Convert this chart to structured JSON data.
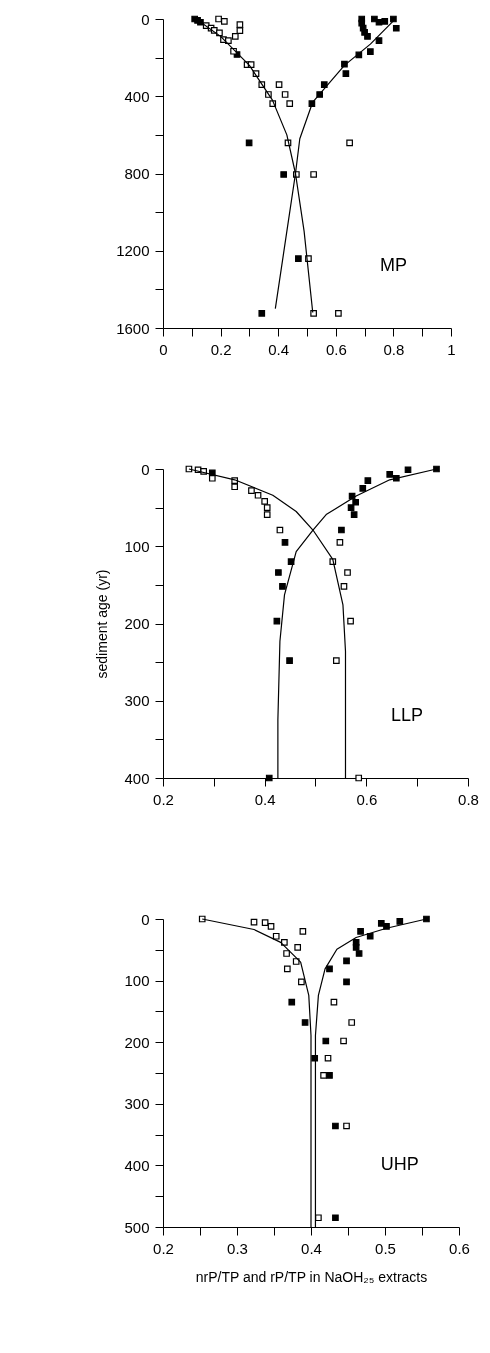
{
  "chart_data": [
    {
      "type": "scatter",
      "annotations": [
        "MP"
      ],
      "marker": "square",
      "grid": false,
      "xlim": [
        0,
        1
      ],
      "xticks": [
        0,
        {
          "value": 0.1,
          "label": null
        },
        0.2,
        {
          "value": 0.3,
          "label": null
        },
        0.4,
        {
          "value": 0.5,
          "label": null
        },
        0.6,
        {
          "value": 0.7,
          "label": null
        },
        0.8,
        {
          "value": 0.9,
          "label": null
        },
        1
      ],
      "ylim": [
        1600,
        0
      ],
      "yticks": [
        0,
        {
          "value": 200,
          "label": null
        },
        400,
        {
          "value": 600,
          "label": null
        },
        800,
        {
          "value": 1000,
          "label": null
        },
        1200,
        {
          "value": 1400,
          "label": null
        },
        1600
      ],
      "series": [
        {
          "color": "#000000",
          "x": [
            0.11,
            0.12,
            0.13,
            0.257,
            0.299,
            0.419,
            0.47,
            0.343,
            0.69,
            0.69,
            0.695,
            0.7,
            0.71,
            0.734,
            0.75,
            0.77,
            0.8,
            0.81,
            0.75,
            0.72,
            0.68,
            0.63,
            0.635,
            0.56,
            0.544,
            0.517
          ],
          "values": [
            0,
            7,
            17,
            184,
            641,
            805,
            1241,
            1524,
            0,
            21,
            47,
            69,
            90,
            0,
            17,
            12,
            0,
            48,
            112,
            169,
            186,
            234,
            283,
            340,
            391,
            438
          ]
        },
        {
          "color": "#000000",
          "x": [
            0.15,
            0.167,
            0.178,
            0.196,
            0.21,
            0.227,
            0.193,
            0.213,
            0.267,
            0.267,
            0.251,
            0.245,
            0.292,
            0.306,
            0.323,
            0.343,
            0.366,
            0.381,
            0.403,
            0.424,
            0.44,
            0.434,
            0.648,
            0.463,
            0.523,
            0.505,
            0.523,
            0.609
          ],
          "values": [
            34,
            47,
            59,
            72,
            107,
            112,
            0,
            12,
            29,
            60,
            90,
            167,
            236,
            236,
            283,
            340,
            391,
            438,
            340,
            391,
            438,
            641,
            641,
            805,
            805,
            1241,
            1524,
            1524
          ]
        },
        {
          "type": "line",
          "marker": "none",
          "color": "#000000",
          "x": [
            0.12,
            0.2,
            0.3,
            0.38,
            0.43,
            0.46,
            0.49,
            0.52
          ],
          "values": [
            5,
            90,
            240,
            420,
            600,
            800,
            1100,
            1520
          ]
        },
        {
          "type": "line",
          "marker": "none",
          "color": "#000000",
          "x": [
            0.8,
            0.72,
            0.63,
            0.52,
            0.475,
            0.46,
            0.43,
            0.39
          ],
          "values": [
            10,
            130,
            240,
            430,
            620,
            800,
            1100,
            1500
          ]
        }
      ]
    },
    {
      "type": "scatter",
      "annotations": [
        "LLP"
      ],
      "ylabel": "sediment age (yr)",
      "marker": "square",
      "grid": false,
      "xlim": [
        0.2,
        0.8
      ],
      "xticks": [
        0.2,
        {
          "value": 0.3,
          "label": null
        },
        0.4,
        {
          "value": 0.5,
          "label": null
        },
        0.6,
        {
          "value": 0.7,
          "label": null
        },
        0.8
      ],
      "ylim": [
        400,
        0
      ],
      "yticks": [
        0,
        {
          "value": 50,
          "label": null
        },
        100,
        {
          "value": 150,
          "label": null
        },
        200,
        {
          "value": 250,
          "label": null
        },
        300,
        {
          "value": 350,
          "label": null
        },
        400
      ],
      "series": [
        {
          "color": "#000000",
          "x": [
            0.297,
            0.738,
            0.682,
            0.646,
            0.659,
            0.603,
            0.593,
            0.572,
            0.579,
            0.57,
            0.576,
            0.551,
            0.44,
            0.452,
            0.427,
            0.435,
            0.424,
            0.449,
            0.409
          ],
          "values": [
            5,
            0,
            1,
            7,
            12,
            15,
            25,
            35,
            43,
            50,
            59,
            79,
            95,
            120,
            134,
            152,
            197,
            248,
            400
          ]
        },
        {
          "color": "#000000",
          "x": [
            0.251,
            0.269,
            0.28,
            0.297,
            0.341,
            0.341,
            0.374,
            0.387,
            0.4,
            0.405,
            0.405,
            0.43,
            0.548,
            0.534,
            0.563,
            0.556,
            0.569,
            0.541,
            0.585
          ],
          "values": [
            0,
            1,
            3,
            12,
            15,
            23,
            28,
            34,
            42,
            50,
            59,
            79,
            95,
            120,
            134,
            152,
            197,
            248,
            400
          ]
        },
        {
          "type": "line",
          "marker": "none",
          "color": "#000000",
          "x": [
            0.251,
            0.341,
            0.416,
            0.462,
            0.495,
            0.534,
            0.554,
            0.559,
            0.559
          ],
          "values": [
            0,
            14,
            34,
            55,
            79,
            117,
            176,
            236,
            400
          ]
        },
        {
          "type": "line",
          "marker": "none",
          "color": "#000000",
          "x": [
            0.738,
            0.646,
            0.58,
            0.521,
            0.495,
            0.462,
            0.439,
            0.43,
            0.426,
            0.426
          ],
          "values": [
            0,
            14,
            35,
            59,
            79,
            107,
            163,
            223,
            325,
            400
          ]
        }
      ]
    },
    {
      "type": "scatter",
      "annotations": [
        "UHP"
      ],
      "xlabel": "nrP/TP and rP/TP in NaOH₂₅ extracts",
      "marker": "square",
      "grid": false,
      "xlim": [
        0.2,
        0.6
      ],
      "xticks": [
        0.2,
        {
          "value": 0.25,
          "label": null
        },
        0.3,
        {
          "value": 0.35,
          "label": null
        },
        0.4,
        {
          "value": 0.45,
          "label": null
        },
        0.5,
        {
          "value": 0.55,
          "label": null
        },
        0.6
      ],
      "ylim": [
        500,
        0
      ],
      "yticks": [
        0,
        {
          "value": 50,
          "label": null
        },
        100,
        {
          "value": 150,
          "label": null
        },
        200,
        {
          "value": 250,
          "label": null
        },
        300,
        {
          "value": 350,
          "label": null
        },
        400,
        {
          "value": 450,
          "label": null
        },
        500
      ],
      "series": [
        {
          "color": "#000000",
          "x": [
            0.556,
            0.52,
            0.502,
            0.495,
            0.48,
            0.467,
            0.461,
            0.461,
            0.465,
            0.448,
            0.425,
            0.448,
            0.374,
            0.392,
            0.42,
            0.405,
            0.425,
            0.433,
            0.433
          ],
          "values": [
            0,
            4,
            12,
            7,
            28,
            20,
            38,
            46,
            56,
            68,
            81,
            102,
            135,
            168,
            198,
            226,
            254,
            336,
            485
          ]
        },
        {
          "color": "#000000",
          "x": [
            0.253,
            0.323,
            0.338,
            0.346,
            0.353,
            0.364,
            0.367,
            0.389,
            0.382,
            0.38,
            0.368,
            0.387,
            0.431,
            0.455,
            0.444,
            0.423,
            0.417,
            0.448,
            0.41
          ],
          "values": [
            0,
            5,
            6,
            12,
            28,
            38,
            56,
            20,
            46,
            69,
            81,
            102,
            135,
            168,
            198,
            226,
            254,
            336,
            485
          ]
        },
        {
          "type": "line",
          "marker": "none",
          "color": "#000000",
          "x": [
            0.253,
            0.323,
            0.359,
            0.386,
            0.397,
            0.4,
            0.4
          ],
          "values": [
            0,
            17,
            38,
            70,
            124,
            189,
            500
          ]
        },
        {
          "type": "line",
          "marker": "none",
          "color": "#000000",
          "x": [
            0.556,
            0.502,
            0.461,
            0.435,
            0.419,
            0.41,
            0.406,
            0.406
          ],
          "values": [
            0,
            15,
            30,
            49,
            81,
            124,
            189,
            500
          ]
        }
      ]
    }
  ]
}
